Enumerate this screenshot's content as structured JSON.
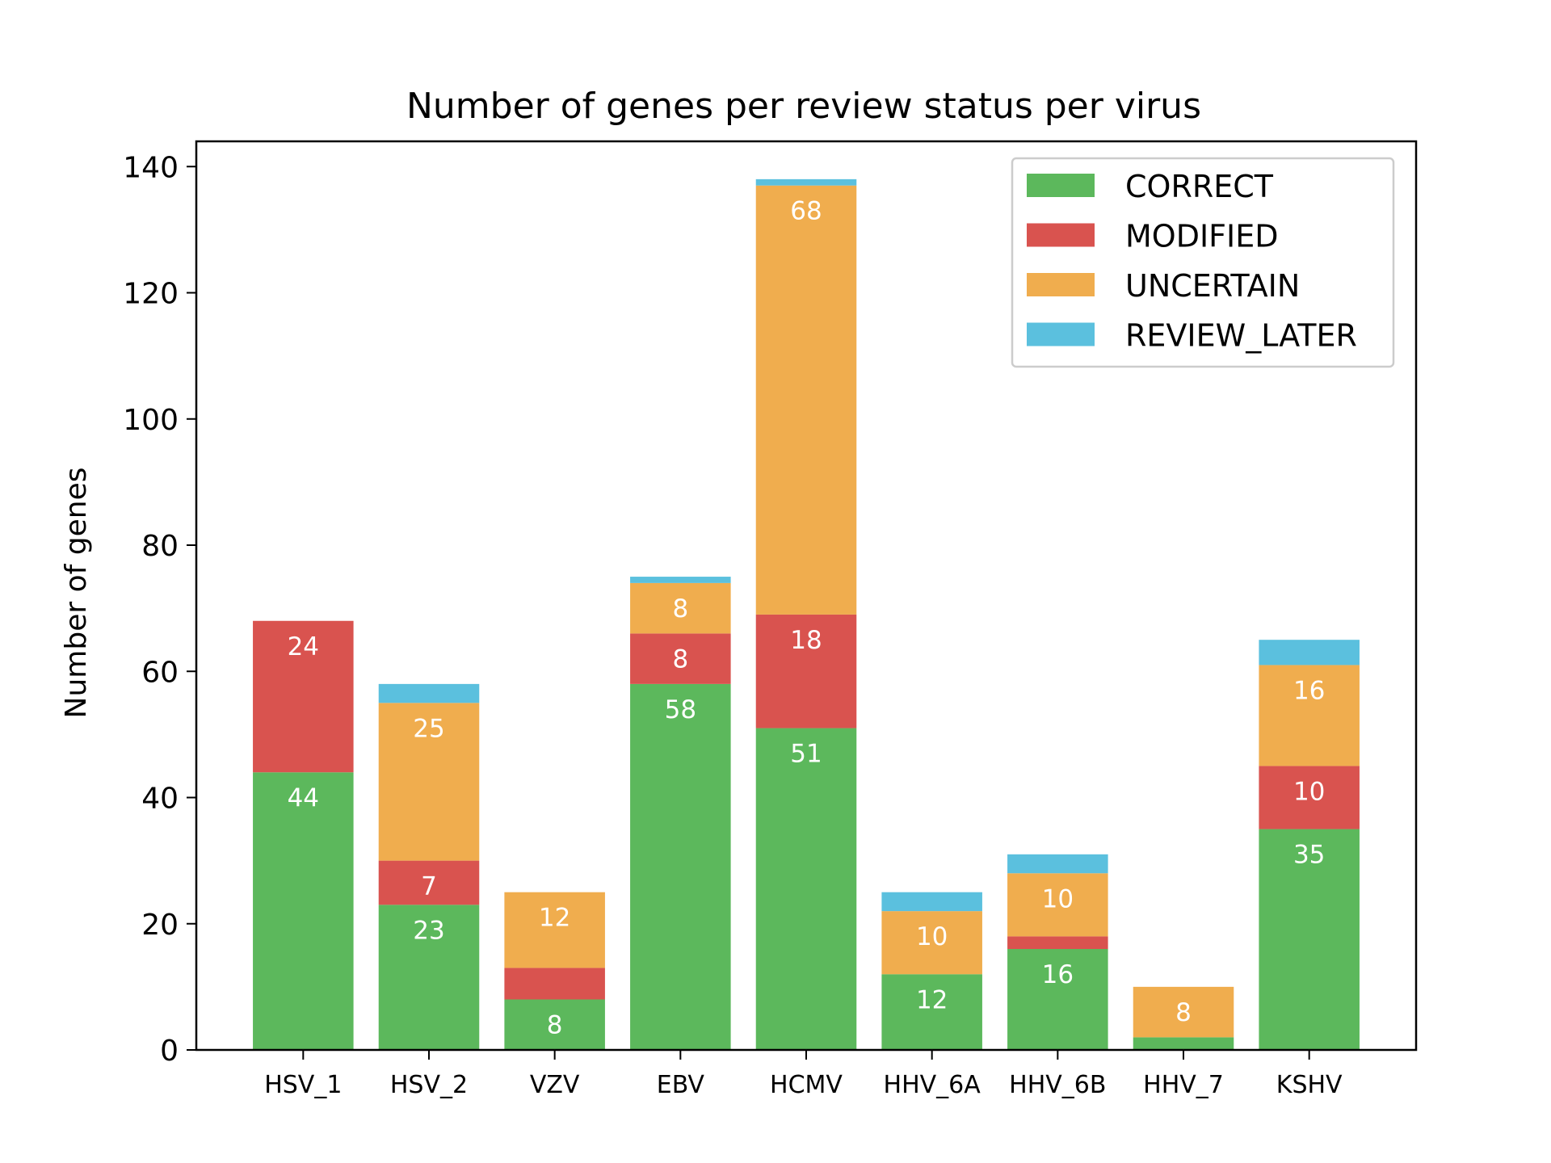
{
  "chart_data": {
    "type": "bar",
    "stacked": true,
    "title": "Number of genes per review status per virus",
    "xlabel": "",
    "ylabel": "Number of genes",
    "ylim": [
      0,
      144
    ],
    "yticks": [
      0,
      20,
      40,
      60,
      80,
      100,
      120,
      140
    ],
    "grid": false,
    "legend_position": "top-right",
    "categories": [
      "HSV_1",
      "HSV_2",
      "VZV",
      "EBV",
      "HCMV",
      "HHV_6A",
      "HHV_6B",
      "HHV_7",
      "KSHV"
    ],
    "series": [
      {
        "name": "CORRECT",
        "color": "#5cb85c",
        "values": [
          44,
          23,
          8,
          58,
          51,
          12,
          16,
          2,
          35
        ]
      },
      {
        "name": "MODIFIED",
        "color": "#d9534f",
        "values": [
          24,
          7,
          5,
          8,
          18,
          0,
          2,
          0,
          10
        ]
      },
      {
        "name": "UNCERTAIN",
        "color": "#f0ad4e",
        "values": [
          0,
          25,
          12,
          8,
          68,
          10,
          10,
          8,
          16
        ]
      },
      {
        "name": "REVIEW_LATER",
        "color": "#5bc0de",
        "values": [
          0,
          3,
          0,
          1,
          1,
          3,
          3,
          0,
          4
        ]
      }
    ],
    "label_min_value": 7
  }
}
